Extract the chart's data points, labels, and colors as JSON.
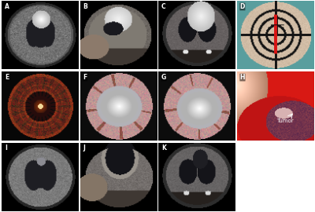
{
  "figure_width": 4.0,
  "figure_height": 2.7,
  "dpi": 100,
  "background_color": "#ffffff",
  "label_color": "#ffffff",
  "label_fontsize": 5.5,
  "tumor_label_fontsize": 5,
  "panels": [
    {
      "label": "A",
      "row": 0,
      "col": 0
    },
    {
      "label": "B",
      "row": 0,
      "col": 1
    },
    {
      "label": "C",
      "row": 0,
      "col": 2
    },
    {
      "label": "D",
      "row": 0,
      "col": 3
    },
    {
      "label": "E",
      "row": 1,
      "col": 0
    },
    {
      "label": "F",
      "row": 1,
      "col": 1
    },
    {
      "label": "G",
      "row": 1,
      "col": 2
    },
    {
      "label": "H",
      "row": 1,
      "col": 3
    },
    {
      "label": "I",
      "row": 2,
      "col": 0
    },
    {
      "label": "J",
      "row": 2,
      "col": 1
    },
    {
      "label": "K",
      "row": 2,
      "col": 2
    }
  ]
}
